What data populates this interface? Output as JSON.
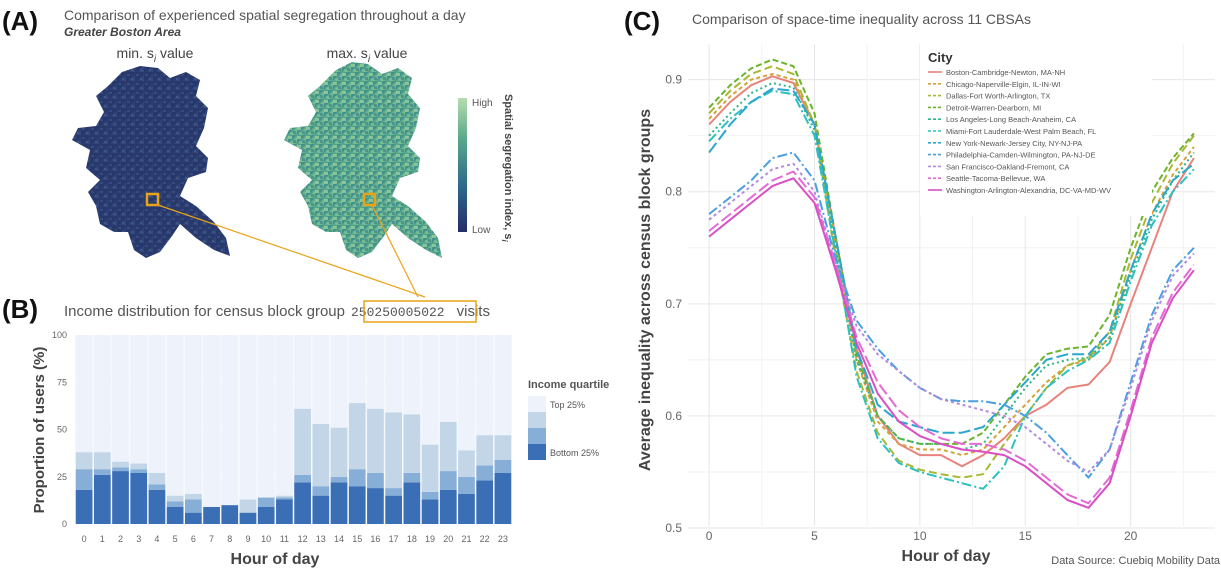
{
  "panel_a": {
    "letter": "(A)",
    "title": "Comparison of experienced spatial segregation throughout a day",
    "subtitle": "Greater Boston Area",
    "map_min_label": "min. s",
    "map_max_label": "max. s",
    "label_sub": "i",
    "label_suffix": " value",
    "colorbar_high": "High",
    "colorbar_low": "Low",
    "colorbar_title": "Spatial segregation index, s",
    "colorbar_title_sub": "i",
    "colors": {
      "low": "#2b3a6f",
      "mid": "#3f8a8a",
      "high": "#a8d5a2",
      "highlight": "#e8a317"
    }
  },
  "panel_b": {
    "letter": "(B)",
    "title_prefix": "Income distribution for census block group",
    "block_group_id": "250250005022",
    "title_suffix": "visits",
    "xlabel": "Hour of day",
    "ylabel": "Proportion of users (%)",
    "legend_title": "Income quartile",
    "legend_items": [
      "Top 25%",
      "",
      "",
      "Bottom 25%"
    ],
    "y_ticks": [
      "0",
      "25",
      "50",
      "75",
      "100"
    ],
    "x_ticks": [
      "0",
      "1",
      "2",
      "3",
      "4",
      "5",
      "6",
      "7",
      "8",
      "9",
      "10",
      "11",
      "12",
      "13",
      "14",
      "15",
      "16",
      "17",
      "18",
      "19",
      "20",
      "21",
      "22",
      "23"
    ]
  },
  "panel_c": {
    "letter": "(C)",
    "title": "Comparison of space-time inequality across 11 CBSAs",
    "xlabel": "Hour of day",
    "ylabel": "Average inequality across census block groups",
    "legend_title": "City",
    "source": "Data Source: Cuebiq Mobility Data",
    "y_ticks": [
      "0.5",
      "0.6",
      "0.7",
      "0.8",
      "0.9"
    ],
    "x_ticks": [
      "0",
      "5",
      "10",
      "15",
      "20"
    ]
  },
  "chart_data": [
    {
      "type": "bar",
      "stacked": true,
      "title": "Income distribution for census block group 250250005022 visits",
      "xlabel": "Hour of day",
      "ylabel": "Proportion of users (%)",
      "ylim": [
        0,
        100
      ],
      "categories": [
        "0",
        "1",
        "2",
        "3",
        "4",
        "5",
        "6",
        "7",
        "8",
        "9",
        "10",
        "11",
        "12",
        "13",
        "14",
        "15",
        "16",
        "17",
        "18",
        "19",
        "20",
        "21",
        "22",
        "23"
      ],
      "series": [
        {
          "name": "Bottom 25%",
          "color": "#3a6fb5",
          "values": [
            18,
            26,
            28,
            27,
            18,
            9,
            6,
            9,
            10,
            6,
            9,
            13,
            22,
            15,
            22,
            20,
            19,
            15,
            22,
            13,
            18,
            16,
            23,
            27
          ]
        },
        {
          "name": "",
          "color": "#86aed6",
          "values": [
            11,
            3,
            2,
            2,
            3,
            3,
            7,
            0,
            0,
            0,
            5,
            1,
            4,
            5,
            3,
            9,
            8,
            4,
            5,
            4,
            10,
            9,
            8,
            7
          ]
        },
        {
          "name": "",
          "color": "#c3d6e8",
          "values": [
            9,
            9,
            3,
            3,
            6,
            3,
            3,
            0,
            0,
            7,
            0,
            1,
            35,
            33,
            26,
            35,
            34,
            40,
            31,
            25,
            26,
            14,
            16,
            13
          ]
        },
        {
          "name": "Top 25%",
          "color": "#eef2fa",
          "values": [
            62,
            62,
            67,
            68,
            73,
            85,
            84,
            91,
            90,
            87,
            86,
            85,
            39,
            47,
            49,
            36,
            39,
            41,
            42,
            58,
            46,
            61,
            53,
            53
          ]
        }
      ],
      "legend_placement": "right"
    },
    {
      "type": "line",
      "title": "Comparison of space-time inequality across 11 CBSAs",
      "xlabel": "Hour of day",
      "ylabel": "Average inequality across census block groups",
      "xlim": [
        0,
        23
      ],
      "ylim": [
        0.5,
        0.93
      ],
      "grid": true,
      "legend_title": "City",
      "legend_placement": "top-right",
      "x": [
        0,
        1,
        2,
        3,
        4,
        5,
        6,
        7,
        8,
        9,
        10,
        11,
        12,
        13,
        14,
        15,
        16,
        17,
        18,
        19,
        20,
        21,
        22,
        23
      ],
      "series": [
        {
          "name": "Boston-Cambridge-Newton, MA-NH",
          "color": "#e8837c",
          "dash": "",
          "values": [
            0.86,
            0.88,
            0.895,
            0.903,
            0.897,
            0.86,
            0.76,
            0.66,
            0.6,
            0.575,
            0.565,
            0.565,
            0.555,
            0.565,
            0.58,
            0.6,
            0.61,
            0.625,
            0.628,
            0.648,
            0.7,
            0.75,
            0.8,
            0.83
          ]
        },
        {
          "name": "Chicago-Naperville-Elgin, IL-IN-WI",
          "color": "#d6a23a",
          "dash": "4,3",
          "values": [
            0.865,
            0.885,
            0.9,
            0.905,
            0.9,
            0.86,
            0.75,
            0.65,
            0.595,
            0.575,
            0.57,
            0.57,
            0.565,
            0.57,
            0.59,
            0.61,
            0.63,
            0.645,
            0.65,
            0.67,
            0.73,
            0.78,
            0.815,
            0.84
          ]
        },
        {
          "name": "Dallas-Fort Worth-Arlington, TX",
          "color": "#a8b832",
          "dash": "8,4",
          "values": [
            0.87,
            0.89,
            0.905,
            0.912,
            0.905,
            0.86,
            0.74,
            0.64,
            0.585,
            0.56,
            0.552,
            0.548,
            0.545,
            0.548,
            0.575,
            0.6,
            0.625,
            0.645,
            0.652,
            0.675,
            0.74,
            0.79,
            0.825,
            0.85
          ]
        },
        {
          "name": "Detroit-Warren-Dearborn, MI",
          "color": "#6ab42c",
          "dash": "6,3",
          "values": [
            0.875,
            0.895,
            0.91,
            0.918,
            0.912,
            0.87,
            0.76,
            0.655,
            0.6,
            0.58,
            0.575,
            0.575,
            0.575,
            0.585,
            0.61,
            0.635,
            0.655,
            0.66,
            0.662,
            0.69,
            0.75,
            0.8,
            0.83,
            0.852
          ]
        },
        {
          "name": "Los Angeles-Long Beach-Anaheim, CA",
          "color": "#2fb58a",
          "dash": "2,3",
          "values": [
            0.85,
            0.87,
            0.888,
            0.897,
            0.893,
            0.855,
            0.75,
            0.65,
            0.6,
            0.58,
            0.575,
            0.575,
            0.57,
            0.575,
            0.6,
            0.625,
            0.645,
            0.65,
            0.652,
            0.67,
            0.725,
            0.775,
            0.81,
            0.835
          ]
        },
        {
          "name": "Miami-Fort Lauderdale-West Palm Beach, FL",
          "color": "#2cc0c0",
          "dash": "10,3,2,3",
          "values": [
            0.845,
            0.865,
            0.88,
            0.89,
            0.887,
            0.85,
            0.745,
            0.635,
            0.58,
            0.558,
            0.55,
            0.545,
            0.54,
            0.535,
            0.555,
            0.6,
            0.625,
            0.64,
            0.65,
            0.665,
            0.72,
            0.77,
            0.8,
            0.82
          ]
        },
        {
          "name": "New York-Newark-Jersey City, NY-NJ-PA",
          "color": "#2aa6cf",
          "dash": "12,4",
          "values": [
            0.835,
            0.86,
            0.88,
            0.892,
            0.89,
            0.86,
            0.76,
            0.66,
            0.61,
            0.595,
            0.59,
            0.585,
            0.585,
            0.59,
            0.61,
            0.63,
            0.65,
            0.655,
            0.655,
            0.675,
            0.73,
            0.78,
            0.81,
            0.825
          ]
        },
        {
          "name": "Philadelphia-Camden-Wilmington, PA-NJ-DE",
          "color": "#4a9fe0",
          "dash": "10,3,2,3",
          "values": [
            0.78,
            0.795,
            0.81,
            0.83,
            0.835,
            0.81,
            0.74,
            0.685,
            0.66,
            0.64,
            0.625,
            0.615,
            0.613,
            0.613,
            0.61,
            0.6,
            0.585,
            0.565,
            0.545,
            0.57,
            0.63,
            0.69,
            0.73,
            0.75
          ]
        },
        {
          "name": "San Francisco-Oakland-Fremont, CA",
          "color": "#b28ae0",
          "dash": "3,3",
          "values": [
            0.775,
            0.79,
            0.805,
            0.82,
            0.825,
            0.8,
            0.735,
            0.68,
            0.655,
            0.64,
            0.625,
            0.615,
            0.61,
            0.605,
            0.6,
            0.59,
            0.575,
            0.56,
            0.55,
            0.57,
            0.625,
            0.685,
            0.725,
            0.745
          ]
        },
        {
          "name": "Seattle-Tacoma-Bellevue, WA",
          "color": "#e46ad6",
          "dash": "12,4",
          "values": [
            0.765,
            0.78,
            0.795,
            0.81,
            0.818,
            0.795,
            0.735,
            0.67,
            0.63,
            0.605,
            0.59,
            0.58,
            0.575,
            0.575,
            0.57,
            0.56,
            0.545,
            0.53,
            0.522,
            0.545,
            0.605,
            0.67,
            0.71,
            0.735
          ]
        },
        {
          "name": "Washington-Arlington-Alexandria, DC-VA-MD-WV",
          "color": "#d94fc4",
          "dash": "",
          "values": [
            0.76,
            0.775,
            0.79,
            0.805,
            0.812,
            0.79,
            0.73,
            0.665,
            0.62,
            0.595,
            0.582,
            0.575,
            0.57,
            0.568,
            0.565,
            0.555,
            0.54,
            0.525,
            0.518,
            0.54,
            0.6,
            0.665,
            0.705,
            0.73
          ]
        }
      ]
    }
  ]
}
